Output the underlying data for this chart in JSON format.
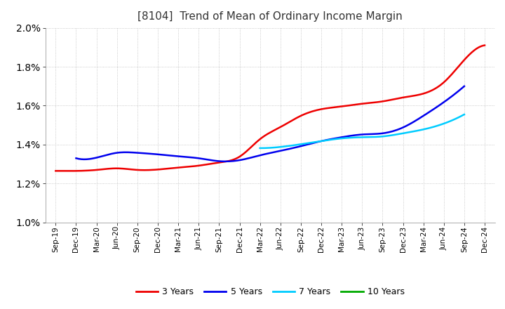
{
  "title": "[8104]  Trend of Mean of Ordinary Income Margin",
  "ylim": [
    0.01,
    0.02
  ],
  "yticks": [
    0.01,
    0.012,
    0.014,
    0.016,
    0.018,
    0.02
  ],
  "background_color": "#ffffff",
  "plot_bg_color": "#f5f5f5",
  "grid_color": "#aaaaaa",
  "x_labels": [
    "Sep-19",
    "Dec-19",
    "Mar-20",
    "Jun-20",
    "Sep-20",
    "Dec-20",
    "Mar-21",
    "Jun-21",
    "Sep-21",
    "Dec-21",
    "Mar-22",
    "Jun-22",
    "Sep-22",
    "Dec-22",
    "Mar-23",
    "Jun-23",
    "Sep-23",
    "Dec-23",
    "Mar-24",
    "Jun-24",
    "Sep-24",
    "Dec-24"
  ],
  "series": {
    "3 Years": {
      "color": "#ee0000",
      "values": [
        0.01265,
        0.01265,
        0.0127,
        0.01278,
        0.0127,
        0.01272,
        0.01282,
        0.01292,
        0.01308,
        0.01338,
        0.01428,
        0.0149,
        0.01548,
        0.01582,
        0.01596,
        0.0161,
        0.01622,
        0.01642,
        0.01662,
        0.0172,
        0.01835,
        0.0191
      ]
    },
    "5 Years": {
      "color": "#0000ee",
      "values": [
        null,
        0.0133,
        0.01333,
        0.01358,
        0.01358,
        0.0135,
        0.0134,
        0.0133,
        0.01315,
        0.0132,
        0.01345,
        0.01368,
        0.01392,
        0.01418,
        0.01438,
        0.01452,
        0.01458,
        0.01488,
        0.01548,
        0.01618,
        0.017,
        null
      ]
    },
    "7 Years": {
      "color": "#00ccff",
      "values": [
        null,
        null,
        null,
        null,
        null,
        null,
        null,
        null,
        null,
        null,
        0.01382,
        0.01388,
        0.01402,
        0.01418,
        0.01432,
        0.01438,
        0.01442,
        0.01458,
        0.01478,
        0.01508,
        0.01555,
        null
      ]
    },
    "10 Years": {
      "color": "#00aa00",
      "values": [
        null,
        null,
        null,
        null,
        null,
        null,
        null,
        null,
        null,
        null,
        null,
        null,
        null,
        null,
        null,
        null,
        null,
        null,
        null,
        null,
        null,
        null
      ]
    }
  },
  "legend_entries": [
    "3 Years",
    "5 Years",
    "7 Years",
    "10 Years"
  ],
  "legend_colors": [
    "#ee0000",
    "#0000ee",
    "#00ccff",
    "#00aa00"
  ],
  "title_fontsize": 11,
  "tick_fontsize": 7.5,
  "legend_fontsize": 9
}
